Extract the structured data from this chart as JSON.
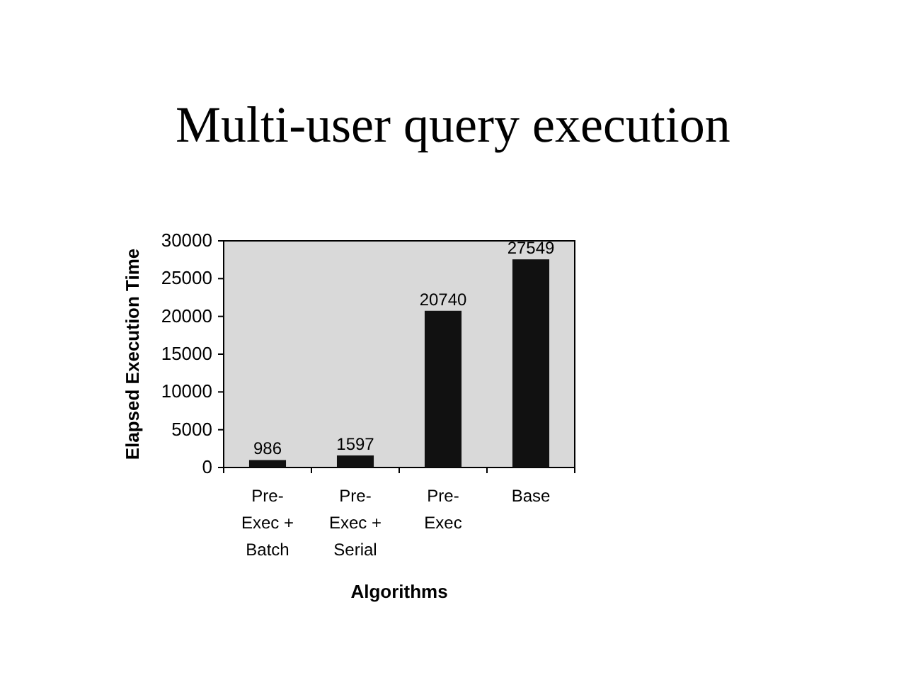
{
  "chart_data": {
    "type": "bar",
    "title": "Multi-user query execution",
    "xlabel": "Algorithms",
    "ylabel": "Elapsed Execution Time",
    "categories": [
      "Pre-\nExec +\nBatch",
      "Pre-\nExec +\nSerial",
      "Pre-\nExec",
      "Base"
    ],
    "values": [
      986,
      1597,
      20740,
      27549
    ],
    "color": "#111111",
    "ylim": [
      0,
      30000
    ],
    "yticks": [
      0,
      5000,
      10000,
      15000,
      20000,
      25000,
      30000
    ],
    "data_labels": true
  }
}
